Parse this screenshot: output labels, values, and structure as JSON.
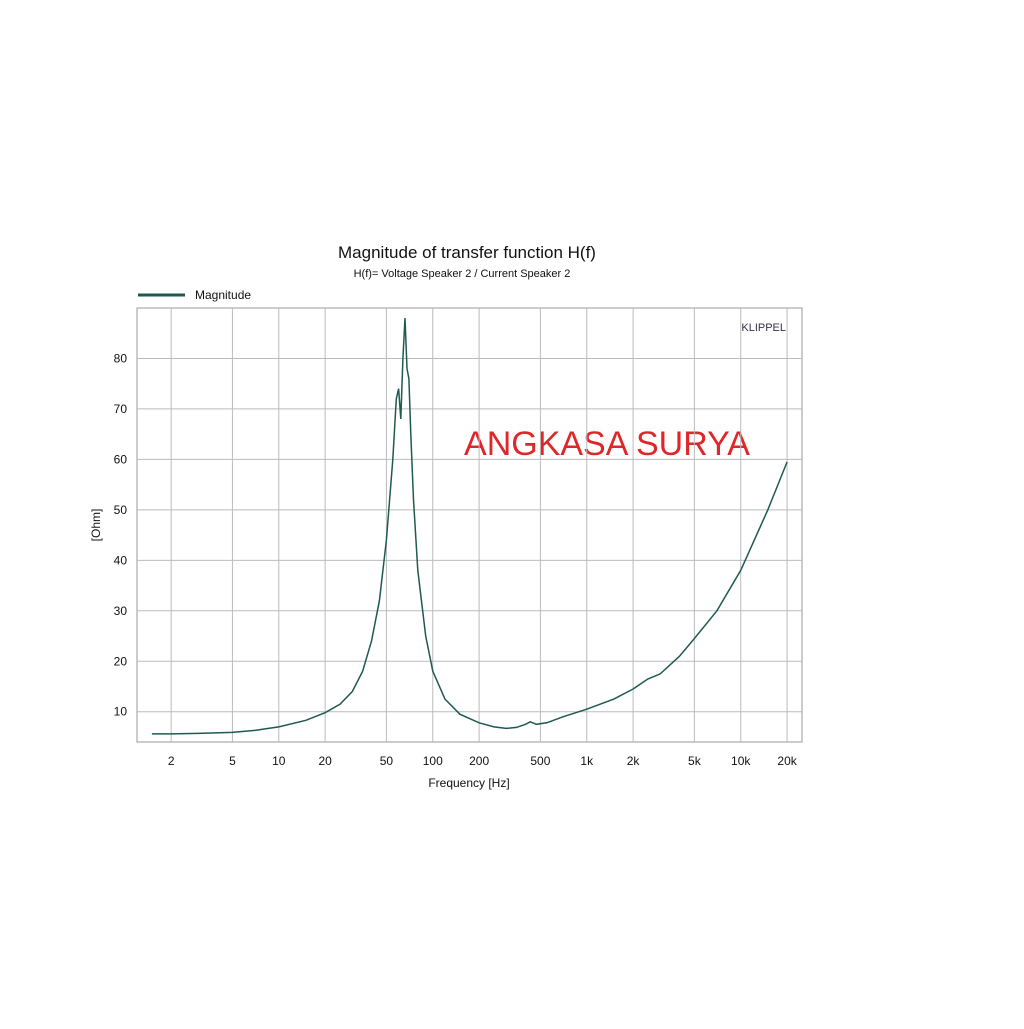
{
  "chart_data": {
    "type": "line",
    "title": "Magnitude of transfer function H(f)",
    "subtitle": "H(f)= Voltage Speaker 2 / Current Speaker 2",
    "x_label": "Frequency [Hz]",
    "y_label": "[Ohm]",
    "annotations": [
      "KLIPPEL",
      "ANGKASA SURYA"
    ],
    "log_x": true,
    "grid": true,
    "legend": "top-left",
    "x": [
      1.5,
      2,
      3,
      5,
      7,
      10,
      15,
      20,
      25,
      30,
      35,
      40,
      45,
      50,
      55,
      58,
      60,
      62,
      64,
      66,
      68,
      70,
      72,
      75,
      80,
      90,
      100,
      120,
      150,
      200,
      250,
      300,
      350,
      400,
      430,
      470,
      550,
      700,
      1000,
      1500,
      2000,
      2500,
      3000,
      4000,
      5000,
      7000,
      10000,
      15000,
      20000
    ],
    "series": [
      {
        "name": "Magnitude",
        "color": "#1f5a50",
        "values": [
          5.6,
          5.6,
          5.7,
          5.9,
          6.3,
          7,
          8.3,
          9.8,
          11.5,
          14,
          18,
          24,
          32,
          44,
          60,
          72,
          74,
          68,
          80,
          88,
          78,
          76,
          65,
          52,
          38,
          25,
          18,
          12.5,
          9.5,
          7.8,
          7,
          6.7,
          6.9,
          7.5,
          8.0,
          7.5,
          7.8,
          9,
          10.5,
          12.5,
          14.5,
          16.5,
          17.5,
          21,
          24.5,
          30,
          38,
          50,
          59.5
        ]
      }
    ],
    "xlim": [
      1.2,
      25000
    ],
    "ylim": [
      4,
      90
    ],
    "xticks": [
      2,
      5,
      10,
      20,
      50,
      100,
      200,
      500,
      {
        "value": 1000,
        "label": "1k"
      },
      {
        "value": 2000,
        "label": "2k"
      },
      {
        "value": 5000,
        "label": "5k"
      },
      {
        "value": 10000,
        "label": "10k"
      },
      {
        "value": 20000,
        "label": "20k"
      }
    ],
    "yticks": [
      10,
      20,
      30,
      40,
      50,
      60,
      70,
      80
    ]
  }
}
